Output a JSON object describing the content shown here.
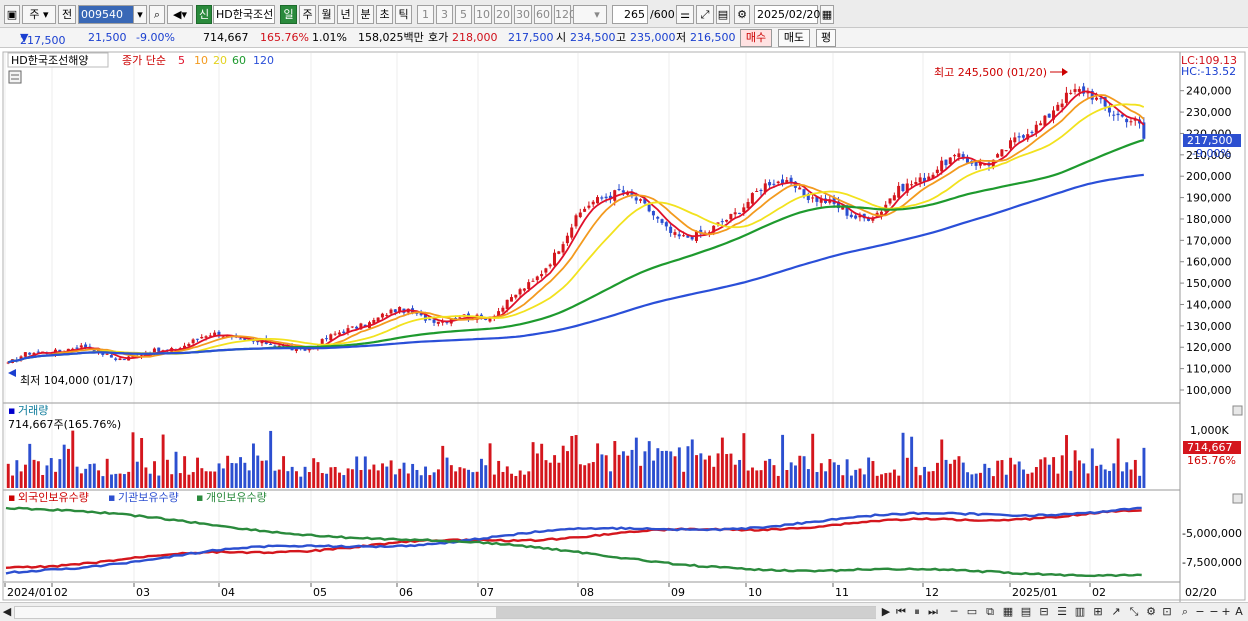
{
  "toolbar": {
    "period_select": "주",
    "prev_label": "전",
    "stock_code": "009540",
    "stock_name": "HD한국조선",
    "type_new": "신",
    "periods": [
      "일",
      "주",
      "월",
      "년",
      "분",
      "초",
      "틱"
    ],
    "active_period": "일",
    "intervals": [
      "1",
      "3",
      "5",
      "10",
      "20",
      "30",
      "60",
      "120"
    ],
    "count": "265",
    "count_total": "/600",
    "date": "2025/02/20"
  },
  "quote": {
    "price": "217,500",
    "change": "21,500",
    "change_pct": "-9.00%",
    "volume": "714,667",
    "volume_ratio": "165.76%",
    "turnover_rate": "1.01%",
    "amount": "158,025백만",
    "bid_label": "호가",
    "bid": "218,000",
    "ask": "217,500",
    "open_label": "시",
    "open": "234,500",
    "high_label": "고",
    "high": "235,000",
    "low_label": "저",
    "low": "216,500",
    "buy_label": "매수",
    "sell_label": "매도",
    "eval_label": "평"
  },
  "price_pane": {
    "stock_name": "HD한국조선해양",
    "ma_title": "종가 단순",
    "ma_periods": [
      "5",
      "10",
      "20",
      "60",
      "120"
    ],
    "ma_colors": [
      "#e0102a",
      "#f39a1e",
      "#f2e21e",
      "#1e9a2e",
      "#2a4fd8"
    ],
    "lc_label": "LC:109.13",
    "hc_label": "HC:-13.52",
    "current_tag": "217,500",
    "current_tag_pct": "-9.00%",
    "high_annotation": "최고 245,500 (01/20)",
    "low_annotation": "최저 104,000 (01/17)",
    "y_ticks": [
      "240,000",
      "230,000",
      "220,000",
      "210,000",
      "200,000",
      "190,000",
      "180,000",
      "170,000",
      "160,000",
      "150,000",
      "140,000",
      "130,000",
      "120,000",
      "110,000",
      "100,000"
    ]
  },
  "volume_pane": {
    "title": "거래량",
    "value_label": "714,667주(165.76%)",
    "y_tick": "1,000K",
    "tag_value": "714,667",
    "tag_pct": "165.76%",
    "up_color": "#d4161d",
    "down_color": "#2c4fd0"
  },
  "holding_pane": {
    "legend": [
      "외국인보유수량",
      "기관보유수량",
      "개인보유수량"
    ],
    "colors": [
      "#d4161d",
      "#2c4fd0",
      "#2a8a3c"
    ],
    "y_ticks": [
      "-5,000,000",
      "-7,500,000"
    ]
  },
  "x_axis": {
    "labels": [
      "2024/01",
      "02",
      "03",
      "04",
      "05",
      "06",
      "07",
      "08",
      "09",
      "10",
      "11",
      "12",
      "2025/01",
      "02"
    ],
    "right_label": "02/20"
  },
  "chart_data": {
    "type": "candlestick",
    "title": "HD한국조선해양",
    "date_range": [
      "2024/01",
      "2025/02/20"
    ],
    "price_ylim": [
      100000,
      245000
    ],
    "monthly_close_approx": {
      "x": [
        "2024/01",
        "02",
        "03",
        "04",
        "05",
        "06",
        "07",
        "08",
        "09",
        "10",
        "11",
        "12",
        "2025/01",
        "02"
      ],
      "y": [
        112000,
        118000,
        122000,
        120000,
        131000,
        132000,
        150000,
        195000,
        172000,
        196000,
        185000,
        205000,
        238000,
        217500
      ]
    },
    "annotations": [
      "최고 245,500 (01/20)",
      "최저 104,000 (01/17)"
    ]
  }
}
